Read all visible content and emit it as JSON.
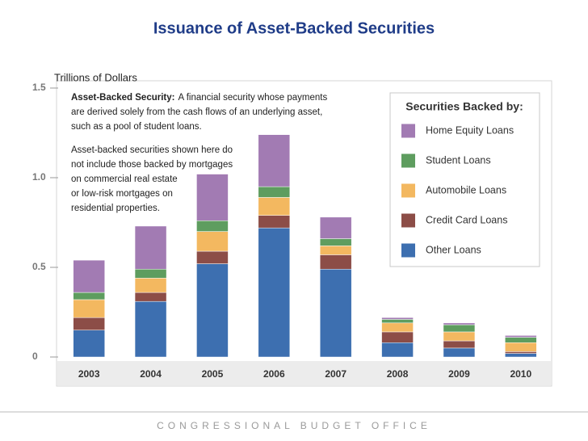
{
  "chart_data": {
    "type": "stacked_bar",
    "title": "Issuance of Asset-Backed Securities",
    "y_axis_label": "Trillions of Dollars",
    "categories": [
      "2003",
      "2004",
      "2005",
      "2006",
      "2007",
      "2008",
      "2009",
      "2010"
    ],
    "series": [
      {
        "name": "Other Loans",
        "color": "#3d6fb0",
        "values": [
          0.15,
          0.31,
          0.52,
          0.72,
          0.49,
          0.08,
          0.05,
          0.02
        ]
      },
      {
        "name": "Credit Card Loans",
        "color": "#8c4d47",
        "values": [
          0.07,
          0.05,
          0.07,
          0.07,
          0.08,
          0.06,
          0.04,
          0.01
        ]
      },
      {
        "name": "Automobile Loans",
        "color": "#f3b860",
        "values": [
          0.1,
          0.08,
          0.11,
          0.1,
          0.05,
          0.05,
          0.05,
          0.05
        ]
      },
      {
        "name": "Student Loans",
        "color": "#5e9d5f",
        "values": [
          0.04,
          0.05,
          0.06,
          0.06,
          0.04,
          0.02,
          0.04,
          0.03
        ]
      },
      {
        "name": "Home Equity Loans",
        "color": "#a27bb3",
        "values": [
          0.18,
          0.24,
          0.26,
          0.29,
          0.12,
          0.01,
          0.01,
          0.01
        ]
      }
    ],
    "ylim": [
      0,
      1.5
    ],
    "yticks": [
      0,
      0.5,
      {
        "value": 1,
        "label": "1.0"
      },
      1.5
    ],
    "legend_title": "Securities Backed by:",
    "legend": "top-right",
    "annotations": [
      {
        "term": "Asset-Backed Security:",
        "lines": [
          "A financial security whose payments",
          "are derived solely from the cash flows of an underlying asset,",
          "such as a pool of student loans."
        ]
      },
      {
        "lines": [
          "Asset-backed securities shown here do",
          "not include those backed by mortgages",
          "on commercial real estate",
          "or low-risk mortgages on",
          "residential properties."
        ]
      }
    ],
    "footer": "CONGRESSIONAL BUDGET OFFICE"
  }
}
